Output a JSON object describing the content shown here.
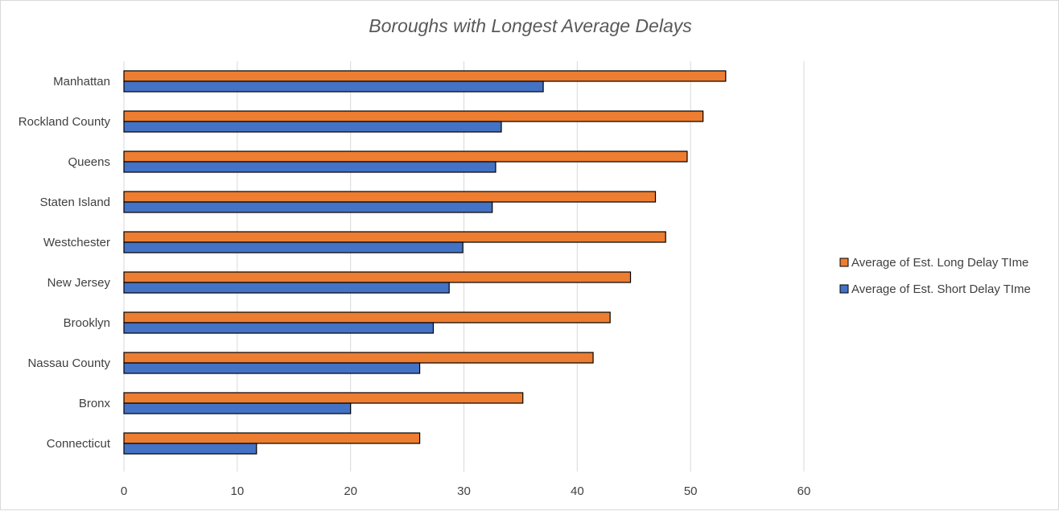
{
  "chart_data": {
    "type": "bar",
    "orientation": "horizontal",
    "title": "Boroughs with Longest Average Delays",
    "xlabel": "",
    "ylabel": "",
    "xlim": [
      0,
      60
    ],
    "x_ticks": [
      0,
      10,
      20,
      30,
      40,
      50,
      60
    ],
    "grid": "vertical",
    "legend_position": "right",
    "categories": [
      "Manhattan",
      "Rockland County",
      "Queens",
      "Staten Island",
      "Westchester",
      "New Jersey",
      "Brooklyn",
      "Nassau County",
      "Bronx",
      "Connecticut"
    ],
    "series": [
      {
        "name": "Average of Est. Long Delay TIme",
        "color": "#ed7d31",
        "values": [
          53.1,
          51.1,
          49.7,
          46.9,
          47.8,
          44.7,
          42.9,
          41.4,
          35.2,
          26.1
        ]
      },
      {
        "name": "Average of Est. Short Delay TIme",
        "color": "#4472c4",
        "values": [
          37.0,
          33.3,
          32.8,
          32.5,
          29.9,
          28.7,
          27.3,
          26.1,
          20.0,
          11.7
        ]
      }
    ]
  }
}
